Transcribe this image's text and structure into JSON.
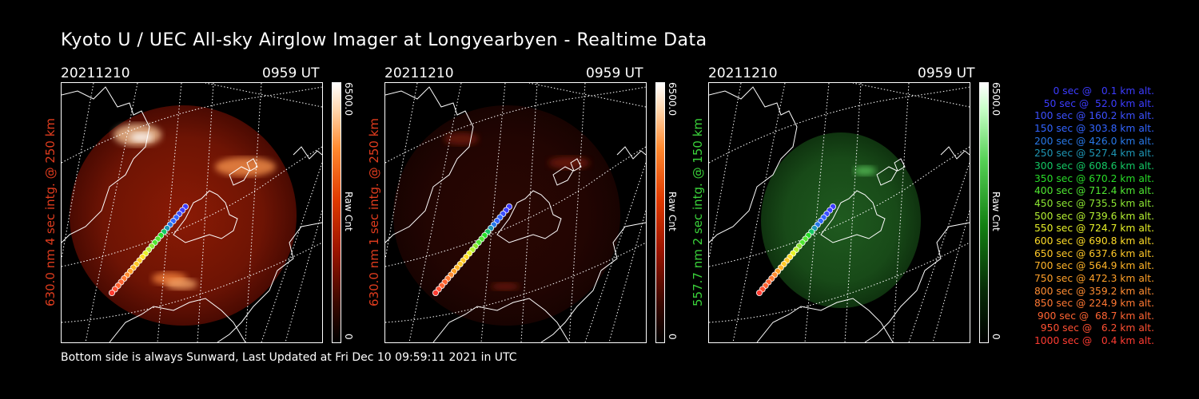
{
  "title": "Kyoto U / UEC All-sky Airglow Imager at Longyearbyen - Realtime Data",
  "footer": "Bottom side is always Sunward, Last Updated at Fri Dec 10 09:59:11 2021 in UTC",
  "panels": [
    {
      "date": "20211210",
      "time": "0959 UT",
      "label": "630.0 nm 4 sec intg. @ 250 km",
      "label_color": "#e03c1e",
      "cbar_max": "6500.0",
      "cbar_unit": "Raw Cnt",
      "cbar_min": "0"
    },
    {
      "date": "20211210",
      "time": "0959 UT",
      "label": "630.0 nm 1 sec intg. @ 250 km",
      "label_color": "#e03c1e",
      "cbar_max": "6500.0",
      "cbar_unit": "Raw Cnt",
      "cbar_min": "0"
    },
    {
      "date": "20211210",
      "time": "0959 UT",
      "label": "557.7 nm 2 sec intg. @ 150 km",
      "label_color": "#3ad23a",
      "cbar_max": "6500.0",
      "cbar_unit": "Raw Cnt",
      "cbar_min": "0"
    }
  ],
  "legend": [
    {
      "text": "0 sec @   0.1 km alt.",
      "color": "#3c3cff"
    },
    {
      "text": "50 sec @  52.0 km alt.",
      "color": "#3c3cff"
    },
    {
      "text": "100 sec @ 160.2 km alt.",
      "color": "#3c50ff"
    },
    {
      "text": "150 sec @ 303.8 km alt.",
      "color": "#3264ff"
    },
    {
      "text": "200 sec @ 426.0 km alt.",
      "color": "#2878e6"
    },
    {
      "text": "250 sec @ 527.4 km alt.",
      "color": "#1e96b4"
    },
    {
      "text": "300 sec @ 608.6 km alt.",
      "color": "#14c864"
    },
    {
      "text": "350 sec @ 670.2 km alt.",
      "color": "#28dc28"
    },
    {
      "text": "400 sec @ 712.4 km alt.",
      "color": "#50e632"
    },
    {
      "text": "450 sec @ 735.5 km alt.",
      "color": "#8ce632"
    },
    {
      "text": "500 sec @ 739.6 km alt.",
      "color": "#b4f032"
    },
    {
      "text": "550 sec @ 724.7 km alt.",
      "color": "#e6f028"
    },
    {
      "text": "600 sec @ 690.8 km alt.",
      "color": "#ffdc28"
    },
    {
      "text": "650 sec @ 637.6 km alt.",
      "color": "#ffc828"
    },
    {
      "text": "700 sec @ 564.9 km alt.",
      "color": "#ffb428"
    },
    {
      "text": "750 sec @ 472.3 km alt.",
      "color": "#ffa028"
    },
    {
      "text": "800 sec @ 359.2 km alt.",
      "color": "#ff8c32"
    },
    {
      "text": "850 sec @ 224.9 km alt.",
      "color": "#ff7832"
    },
    {
      "text": "900 sec @  68.7 km alt.",
      "color": "#ff6432"
    },
    {
      "text": "950 sec @   6.2 km alt.",
      "color": "#ff5032"
    },
    {
      "text": "1000 sec @   0.4 km alt.",
      "color": "#ff3c32"
    }
  ]
}
